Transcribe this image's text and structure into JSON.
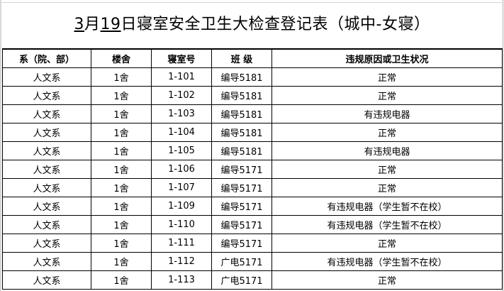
{
  "title": {
    "month": "3",
    "month_unit": "月",
    "day": "19",
    "rest": "日寝室安全卫生大检查登记表（城中-女寝）"
  },
  "columns": [
    "系（院、部）",
    "楼舍",
    "寝室号",
    "班  级",
    "违规原因或卫生状况"
  ],
  "rows": [
    [
      "人文系",
      "1舍",
      "1-101",
      "编导5181",
      "正常"
    ],
    [
      "人文系",
      "1舍",
      "1-102",
      "编导5181",
      "正常"
    ],
    [
      "人文系",
      "1舍",
      "1-103",
      "编导5181",
      "有违规电器"
    ],
    [
      "人文系",
      "1舍",
      "1-104",
      "编导5181",
      "正常"
    ],
    [
      "人文系",
      "1舍",
      "1-105",
      "编导5181",
      "有违规电器"
    ],
    [
      "人文系",
      "1舍",
      "1-106",
      "编导5171",
      "正常"
    ],
    [
      "人文系",
      "1舍",
      "1-107",
      "编导5171",
      "正常"
    ],
    [
      "人文系",
      "1舍",
      "1-109",
      "编导5171",
      "有违规电器（学生暂不在校）"
    ],
    [
      "人文系",
      "1舍",
      "1-110",
      "编导5171",
      "有违规电器（学生暂不在校）"
    ],
    [
      "人文系",
      "1舍",
      "1-111",
      "编导5171",
      "正常"
    ],
    [
      "人文系",
      "1舍",
      "1-112",
      "广电5171",
      "有违规电器（学生暂不在校）"
    ],
    [
      "人文系",
      "1舍",
      "1-113",
      "广电5171",
      "正常"
    ]
  ]
}
